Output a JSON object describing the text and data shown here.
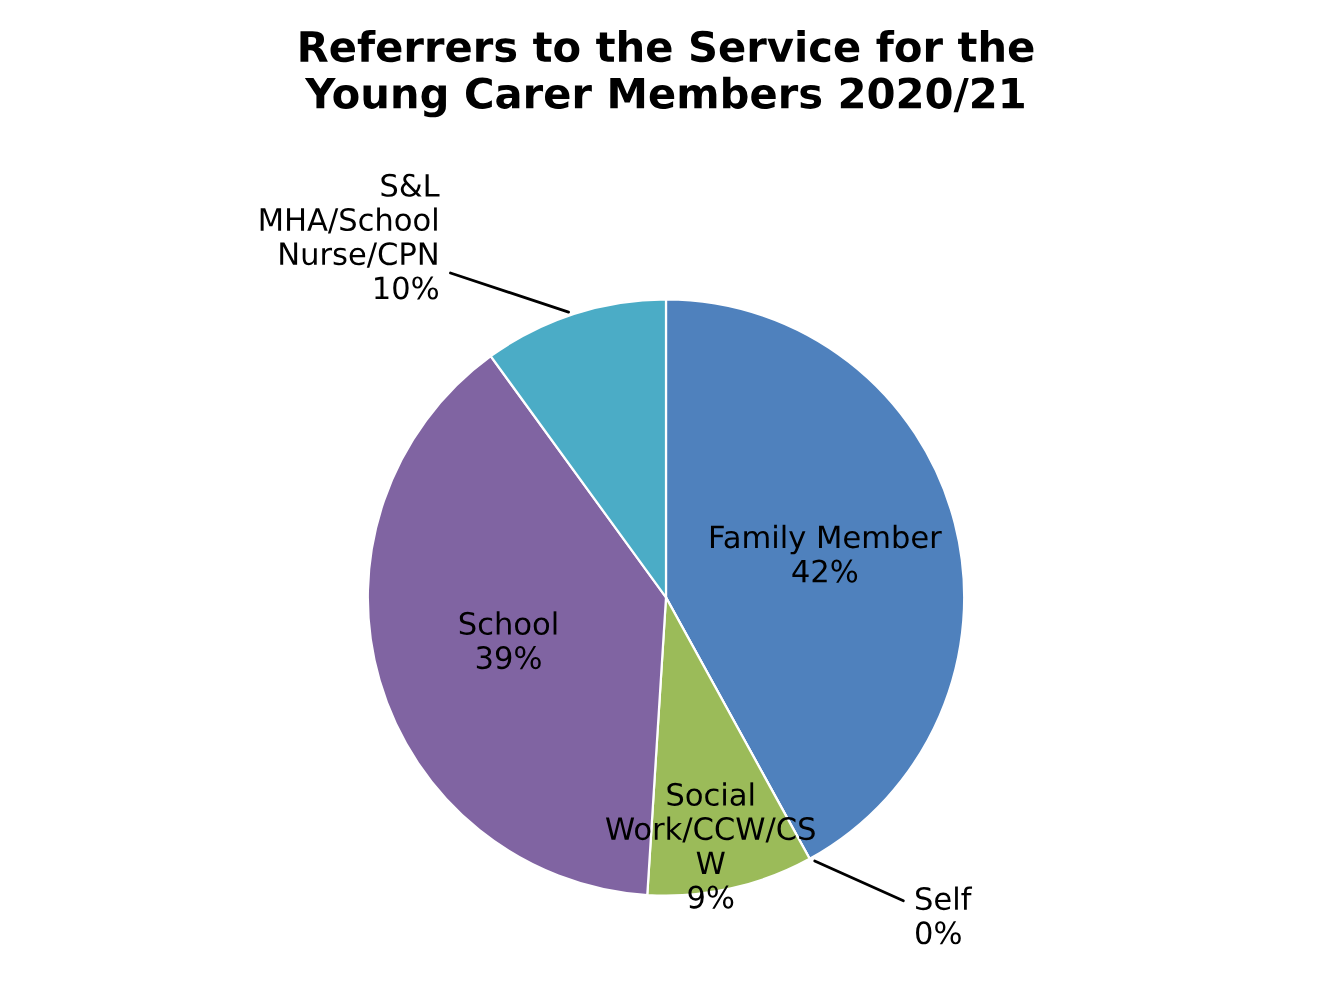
{
  "chart_data": {
    "type": "pie",
    "title": "Referrers to the Service for the\nYoung Carer Members 2020/21",
    "categories": [
      "Family Member",
      "Self",
      "Social\nWork/CCW/CS\nW",
      "School",
      "S&L\nMHA/School\nNurse/CPN"
    ],
    "values": [
      42,
      0,
      9,
      39,
      10
    ],
    "colors": [
      "#4f81bd",
      "#c0504d",
      "#9bbb59",
      "#8064a2",
      "#4bacc6"
    ],
    "value_labels": [
      "42%",
      "0%",
      "9%",
      "39%",
      "10%"
    ]
  }
}
